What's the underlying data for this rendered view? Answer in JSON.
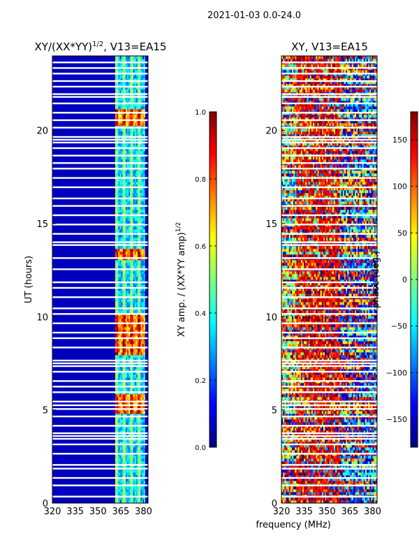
{
  "figure_title": "2021-01-03 0.0-24.0",
  "shared_xlabel": "frequency (MHz)",
  "chart_data": [
    {
      "type": "heatmap",
      "title_main": "XY/(XX*YY)",
      "title_sup": "1/2",
      "title_tail": ", V13=EA15",
      "ylabel": "UT (hours)",
      "xlim": [
        320,
        383
      ],
      "ylim": [
        0,
        24
      ],
      "xticks": [
        320,
        335,
        350,
        365,
        380
      ],
      "yticks": [
        0,
        5,
        10,
        15,
        20
      ],
      "xtick_labels": [
        "320",
        "335",
        "350",
        "365",
        "380"
      ],
      "ytick_labels": [
        "0",
        "5",
        "10",
        "15",
        "20"
      ],
      "colorbar": {
        "label": "XY amp. / (XX*YY amp)",
        "label_sup": "1/2",
        "range": [
          0.0,
          1.0
        ],
        "ticks": [
          0.0,
          0.2,
          0.4,
          0.6,
          0.8,
          1.0
        ],
        "tick_labels": [
          "0.0",
          "0.2",
          "0.4",
          "0.6",
          "0.8",
          "1.0"
        ],
        "colormap": "jet"
      },
      "background_value": 0.0,
      "active_band_mhz": [
        361,
        381
      ],
      "high_amplitude_windows_hours": [
        [
          8.0,
          10.2
        ],
        [
          4.8,
          5.8
        ],
        [
          13.0,
          13.6
        ],
        [
          20.3,
          21.2
        ]
      ]
    },
    {
      "type": "heatmap",
      "title": "XY, V13=EA15",
      "xlim": [
        320,
        383
      ],
      "ylim": [
        0,
        24
      ],
      "xticks": [
        320,
        335,
        350,
        365,
        380
      ],
      "yticks": [
        0,
        5,
        10,
        15,
        20
      ],
      "xtick_labels": [
        "320",
        "335",
        "350",
        "365",
        "380"
      ],
      "ytick_labels": [
        "0",
        "5",
        "10",
        "15",
        "20"
      ],
      "colorbar": {
        "label": "phase (deg.)",
        "range": [
          -180,
          180
        ],
        "ticks": [
          -150,
          -100,
          -50,
          0,
          50,
          100,
          150
        ],
        "tick_labels": [
          "−150",
          "−100",
          "−50",
          "0",
          "50",
          "100",
          "150"
        ],
        "colormap": "jet"
      }
    }
  ],
  "gap_hours": [
    0.35,
    0.95,
    1.35,
    1.85,
    2.05,
    2.65,
    3.15,
    3.45,
    3.6,
    3.75,
    4.15,
    4.65,
    5.05,
    5.25,
    5.45,
    5.95,
    6.25,
    6.55,
    7.05,
    7.35,
    7.5,
    7.65,
    8.35,
    8.85,
    9.15,
    9.65,
    10.15,
    10.45,
    11.05,
    11.55,
    11.85,
    12.55,
    13.15,
    13.85,
    14.0,
    14.45,
    14.95,
    15.45,
    15.95,
    16.35,
    16.95,
    17.45,
    17.95,
    18.25,
    18.65,
    19.05,
    19.35,
    19.5,
    19.65,
    20.15,
    20.55,
    20.95,
    21.45,
    21.8,
    21.95,
    22.35,
    22.65,
    23.05,
    23.35,
    23.65
  ]
}
